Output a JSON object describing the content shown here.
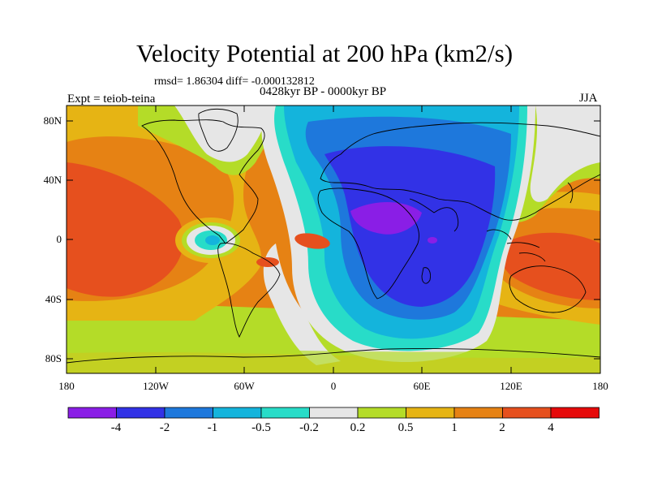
{
  "title": "Velocity Potential at 200 hPa (km2/s)",
  "stats_line": "rmsd= 1.86304 diff= -0.000132812",
  "period_line": "0428kyr BP - 0000kyr BP",
  "experiment_label": "Expt = teiob-teina",
  "season_label": "JJA",
  "lat_ticks": [
    "80N",
    "40N",
    "0",
    "40S",
    "80S"
  ],
  "lon_ticks": [
    "180",
    "120W",
    "60W",
    "0",
    "60E",
    "120E",
    "180"
  ],
  "colorbar": {
    "labels": [
      "-4",
      "-2",
      "-1",
      "-0.5",
      "-0.2",
      "0.2",
      "0.5",
      "1",
      "2",
      "4"
    ],
    "colors": [
      "#8a1ee6",
      "#3232e6",
      "#1e78dc",
      "#14b4dc",
      "#28dcc8",
      "#e6e6e6",
      "#b4dc28",
      "#e6b414",
      "#e68214",
      "#e6501e",
      "#e60a0a"
    ]
  }
}
